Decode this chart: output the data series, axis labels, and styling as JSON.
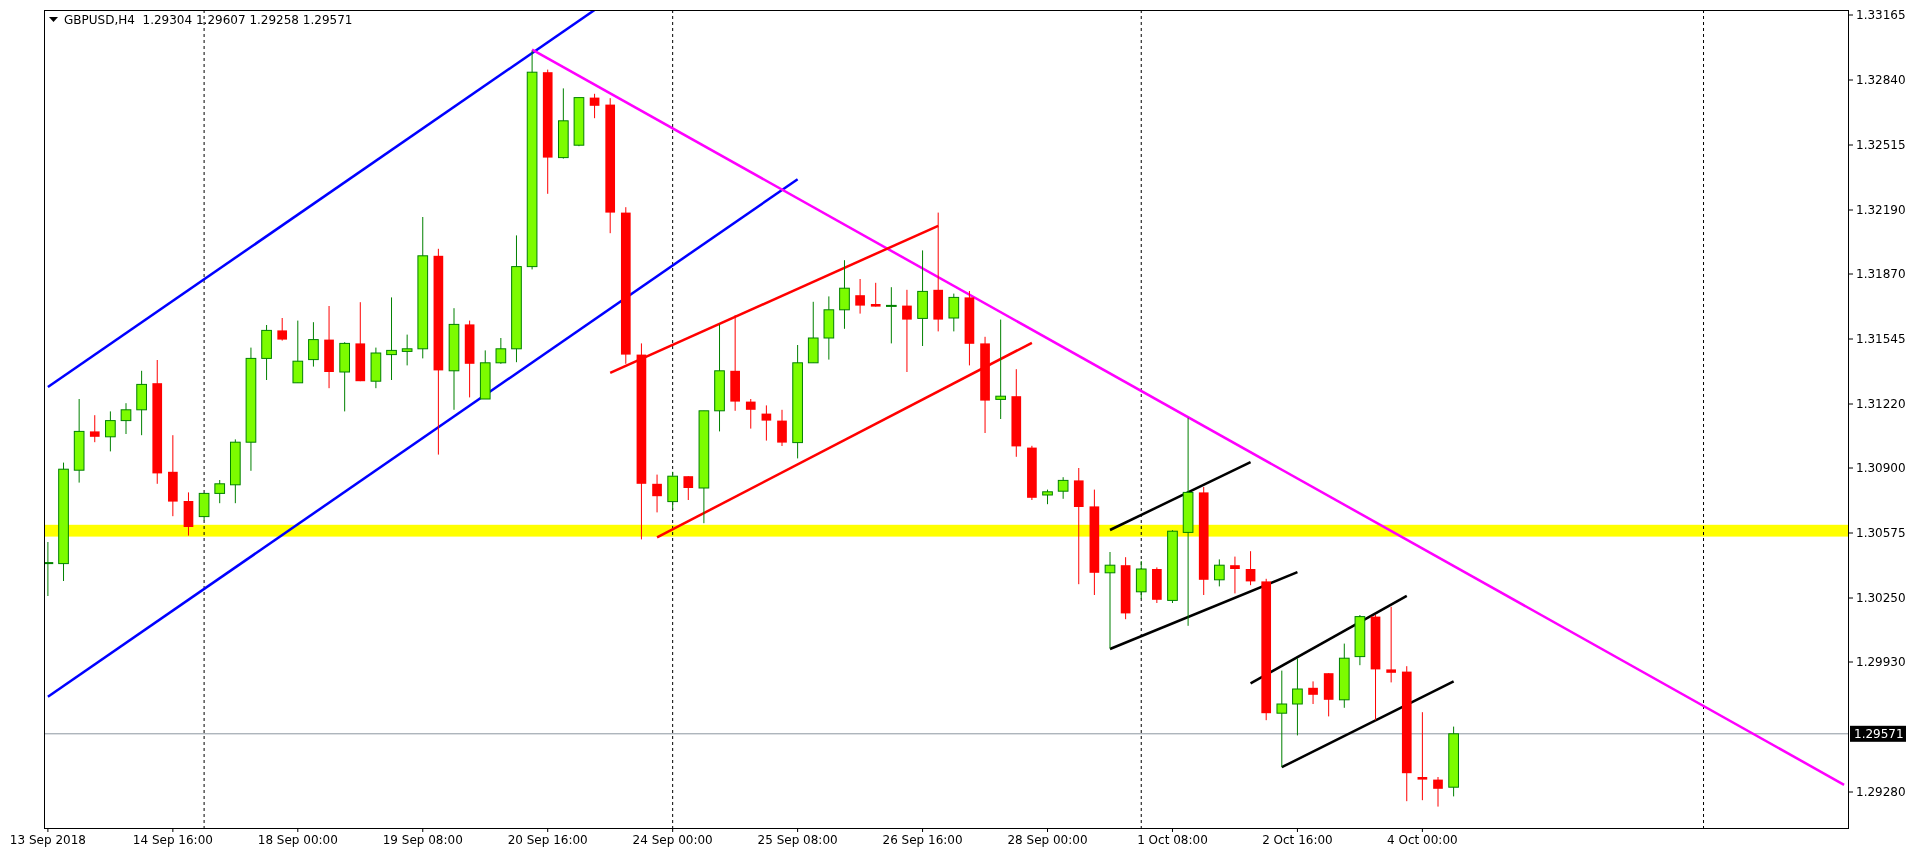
{
  "chart_data": {
    "type": "candlestick",
    "title": "GBPUSD,H4  1.29304 1.29607 1.29258 1.29571",
    "categories": [
      "13 Sep 2018",
      null,
      null,
      null,
      null,
      null,
      null,
      null,
      "14 Sep 16:00",
      null,
      null,
      null,
      null,
      null,
      null,
      null,
      "18 Sep 00:00",
      null,
      null,
      null,
      null,
      null,
      null,
      null,
      "19 Sep 08:00",
      null,
      null,
      null,
      null,
      null,
      null,
      null,
      "20 Sep 16:00",
      null,
      null,
      null,
      null,
      null,
      null,
      null,
      "24 Sep 00:00",
      null,
      null,
      null,
      null,
      null,
      null,
      null,
      "25 Sep 08:00",
      null,
      null,
      null,
      null,
      null,
      null,
      null,
      "26 Sep 16:00",
      null,
      null,
      null,
      null,
      null,
      null,
      null,
      "28 Sep 00:00",
      null,
      null,
      null,
      null,
      null,
      null,
      null,
      "1 Oct 08:00",
      null,
      null,
      null,
      null,
      null,
      null,
      null,
      "2 Oct 16:00",
      null,
      null,
      null,
      null,
      null,
      null,
      null,
      "4 Oct 00:00",
      null,
      null,
      null,
      null,
      null,
      null,
      null,
      null,
      null,
      null,
      null,
      null,
      null,
      null,
      null,
      null,
      null,
      null,
      null,
      null,
      null,
      null,
      null,
      null,
      null,
      null,
      null
    ],
    "ohlc": [
      [
        1.30422,
        1.3053,
        1.3026,
        1.30427
      ],
      [
        1.30422,
        1.30927,
        1.30335,
        1.30894
      ],
      [
        1.30889,
        1.31245,
        1.30827,
        1.31083
      ],
      [
        1.31083,
        1.31164,
        1.31029,
        1.31056
      ],
      [
        1.31056,
        1.31183,
        1.30983,
        1.31137
      ],
      [
        1.31137,
        1.31224,
        1.3107,
        1.31191
      ],
      [
        1.31191,
        1.31386,
        1.31064,
        1.31318
      ],
      [
        1.31324,
        1.3144,
        1.30821,
        1.30873
      ],
      [
        1.30881,
        1.31064,
        1.30659,
        1.30732
      ],
      [
        1.30735,
        1.30778,
        1.30562,
        1.30605
      ],
      [
        1.30657,
        1.30773,
        1.30638,
        1.30773
      ],
      [
        1.30773,
        1.3084,
        1.30724,
        1.30821
      ],
      [
        1.30816,
        1.31043,
        1.30724,
        1.31029
      ],
      [
        1.31029,
        1.31502,
        1.30886,
        1.31448
      ],
      [
        1.31448,
        1.31615,
        1.3134,
        1.31588
      ],
      [
        1.31588,
        1.3165,
        1.31537,
        1.31542
      ],
      [
        1.31326,
        1.31637,
        1.31326,
        1.31434
      ],
      [
        1.31442,
        1.31629,
        1.31407,
        1.31542
      ],
      [
        1.31542,
        1.3171,
        1.31299,
        1.3138
      ],
      [
        1.3138,
        1.31529,
        1.31183,
        1.31523
      ],
      [
        1.31523,
        1.31729,
        1.31334,
        1.31334
      ],
      [
        1.31334,
        1.31502,
        1.31299,
        1.31475
      ],
      [
        1.31467,
        1.31753,
        1.3134,
        1.31488
      ],
      [
        1.31483,
        1.31567,
        1.31413,
        1.31496
      ],
      [
        1.31496,
        1.32155,
        1.31448,
        1.31961
      ],
      [
        1.31961,
        1.31996,
        1.30967,
        1.31388
      ],
      [
        1.31386,
        1.31699,
        1.31191,
        1.31618
      ],
      [
        1.31618,
        1.31637,
        1.31253,
        1.31421
      ],
      [
        1.31245,
        1.31488,
        1.31245,
        1.31426
      ],
      [
        1.31426,
        1.3155,
        1.31421,
        1.31496
      ],
      [
        1.31496,
        1.32063,
        1.31429,
        1.31907
      ],
      [
        1.31907,
        1.32987,
        1.31893,
        1.32879
      ],
      [
        1.32879,
        1.32892,
        1.32271,
        1.32452
      ],
      [
        1.32452,
        1.32798,
        1.32447,
        1.32636
      ],
      [
        1.32514,
        1.32752,
        1.32509,
        1.32752
      ],
      [
        1.32752,
        1.32771,
        1.32649,
        1.32711
      ],
      [
        1.32717,
        1.32749,
        1.32074,
        1.32177
      ],
      [
        1.32177,
        1.32204,
        1.31421,
        1.31467
      ],
      [
        1.31467,
        1.31523,
        1.30543,
        1.30821
      ],
      [
        1.30821,
        1.30867,
        1.30678,
        1.30759
      ],
      [
        1.30732,
        1.30881,
        1.30692,
        1.30859
      ],
      [
        1.30859,
        1.30859,
        1.3074,
        1.308
      ],
      [
        1.308,
        1.31186,
        1.30624,
        1.31186
      ],
      [
        1.31186,
        1.31618,
        1.31083,
        1.31386
      ],
      [
        1.31386,
        1.31664,
        1.31186,
        1.31232
      ],
      [
        1.31232,
        1.31245,
        1.31097,
        1.31191
      ],
      [
        1.31172,
        1.31213,
        1.31037,
        1.31137
      ],
      [
        1.31137,
        1.31191,
        1.3101,
        1.31027
      ],
      [
        1.31027,
        1.31515,
        1.30948,
        1.31426
      ],
      [
        1.31426,
        1.31731,
        1.31426,
        1.3155
      ],
      [
        1.3155,
        1.31758,
        1.31442,
        1.31691
      ],
      [
        1.31691,
        1.31939,
        1.31596,
        1.31799
      ],
      [
        1.31764,
        1.31845,
        1.31672,
        1.31712
      ],
      [
        1.3172,
        1.31826,
        1.31707,
        1.31707
      ],
      [
        1.3171,
        1.31804,
        1.31523,
        1.31713
      ],
      [
        1.31712,
        1.31791,
        1.3138,
        1.31642
      ],
      [
        1.31648,
        1.31988,
        1.3151,
        1.31783
      ],
      [
        1.31791,
        1.32177,
        1.31583,
        1.31642
      ],
      [
        1.3165,
        1.31772,
        1.31583,
        1.31753
      ],
      [
        1.31753,
        1.31785,
        1.31413,
        1.31521
      ],
      [
        1.31523,
        1.31556,
        1.31075,
        1.31237
      ],
      [
        1.31243,
        1.31642,
        1.31145,
        1.31259
      ],
      [
        1.31259,
        1.31394,
        1.30956,
        1.31008
      ],
      [
        1.31002,
        1.31011,
        1.3074,
        1.30751
      ],
      [
        1.30765,
        1.30792,
        1.30719,
        1.30781
      ],
      [
        1.30784,
        1.30854,
        1.30746,
        1.30838
      ],
      [
        1.30838,
        1.309,
        1.30319,
        1.30705
      ],
      [
        1.30708,
        1.30792,
        1.30265,
        1.30376
      ],
      [
        1.30376,
        1.3048,
        1.29998,
        1.30414
      ],
      [
        1.30414,
        1.30454,
        1.30144,
        1.30173
      ],
      [
        1.30281,
        1.30435,
        1.30246,
        1.30395
      ],
      [
        1.30395,
        1.30403,
        1.30225,
        1.30241
      ],
      [
        1.30238,
        1.30589,
        1.30225,
        1.30584
      ],
      [
        1.30578,
        1.31151,
        1.30111,
        1.30778
      ],
      [
        1.30778,
        1.30805,
        1.30265,
        1.30341
      ],
      [
        1.30341,
        1.30443,
        1.30308,
        1.30414
      ],
      [
        1.30414,
        1.30457,
        1.30273,
        1.30395
      ],
      [
        1.30395,
        1.30484,
        1.30314,
        1.30333
      ],
      [
        1.30333,
        1.30346,
        1.29639,
        1.29674
      ],
      [
        1.29674,
        1.29887,
        1.29404,
        1.2972
      ],
      [
        1.2972,
        1.29949,
        1.29563,
        1.29795
      ],
      [
        1.29801,
        1.29833,
        1.2972,
        1.29766
      ],
      [
        1.29874,
        1.29874,
        1.29658,
        1.29741
      ],
      [
        1.29741,
        1.30022,
        1.29701,
        1.29949
      ],
      [
        1.29957,
        1.30165,
        1.29914,
        1.30157
      ],
      [
        1.30157,
        1.30165,
        1.29639,
        1.29893
      ],
      [
        1.29893,
        1.30206,
        1.29828,
        1.29876
      ],
      [
        1.29882,
        1.29909,
        1.29234,
        1.29374
      ],
      [
        1.29355,
        1.29679,
        1.29239,
        1.29342
      ],
      [
        1.29342,
        1.29355,
        1.29207,
        1.29296
      ],
      [
        1.29304,
        1.29607,
        1.29258,
        1.29571
      ],
      null,
      null,
      null,
      null,
      null,
      null,
      null,
      null,
      null,
      null,
      null,
      null,
      null,
      null,
      null,
      null,
      null,
      null,
      null,
      null,
      null,
      null,
      null,
      null,
      null
    ],
    "series": [
      {
        "type": "line",
        "color": "#0000ff",
        "values": [
          1.31305,
          null,
          null,
          null,
          null,
          null,
          null,
          null,
          null,
          null,
          null,
          null,
          null,
          null,
          null,
          null,
          null,
          null,
          null,
          null,
          null,
          null,
          null,
          null,
          null,
          null,
          null,
          null,
          null,
          null,
          null,
          null,
          null,
          null,
          null,
          1.3319,
          null,
          null,
          null,
          null,
          null,
          null,
          null,
          null,
          null,
          null,
          null,
          null,
          null,
          null,
          null,
          null,
          null,
          null,
          null,
          null,
          null,
          null,
          null,
          null,
          null,
          null,
          null,
          null,
          null,
          null,
          null,
          null,
          null,
          null,
          null,
          null,
          null,
          null,
          null,
          null,
          null,
          null,
          null,
          null,
          null,
          null,
          null,
          null,
          null,
          null,
          null,
          null,
          null,
          null,
          null,
          null,
          null,
          null,
          null,
          null,
          null,
          null,
          null,
          null,
          null,
          null,
          null,
          null,
          null,
          null,
          null,
          null,
          null,
          null,
          null,
          null,
          null,
          null,
          null,
          null
        ]
      },
      {
        "type": "line",
        "color": "#0000ff",
        "values": [
          1.29756,
          null,
          null,
          null,
          null,
          null,
          null,
          null,
          null,
          null,
          null,
          null,
          null,
          null,
          null,
          null,
          null,
          null,
          null,
          null,
          null,
          null,
          null,
          null,
          null,
          null,
          null,
          null,
          null,
          null,
          null,
          null,
          null,
          null,
          null,
          null,
          null,
          null,
          null,
          null,
          null,
          null,
          null,
          null,
          null,
          null,
          null,
          null,
          1.32344,
          null,
          null,
          null,
          null,
          null,
          null,
          null,
          null,
          null,
          null,
          null,
          null,
          null,
          null,
          null,
          null,
          null,
          null,
          null,
          null,
          null,
          null,
          null,
          null,
          null,
          null,
          null,
          null,
          null,
          null,
          null,
          null,
          null,
          null,
          null,
          null,
          null,
          null,
          null,
          null,
          null,
          null,
          null,
          null,
          null,
          null,
          null,
          null,
          null,
          null,
          null,
          null,
          null,
          null,
          null,
          null,
          null,
          null,
          null,
          null,
          null,
          null,
          null,
          null,
          null,
          null,
          null
        ]
      },
      {
        "type": "line",
        "color": "#ff00ff",
        "values": [
          null,
          null,
          null,
          null,
          null,
          null,
          null,
          null,
          null,
          null,
          null,
          null,
          null,
          null,
          null,
          null,
          null,
          null,
          null,
          null,
          null,
          null,
          null,
          null,
          null,
          null,
          null,
          null,
          null,
          null,
          null,
          1.32992,
          null,
          null,
          null,
          null,
          null,
          null,
          null,
          null,
          null,
          null,
          null,
          null,
          null,
          null,
          null,
          null,
          null,
          null,
          null,
          null,
          null,
          null,
          null,
          null,
          null,
          null,
          null,
          null,
          null,
          null,
          null,
          null,
          null,
          null,
          null,
          null,
          null,
          null,
          null,
          null,
          null,
          null,
          null,
          null,
          null,
          null,
          null,
          null,
          null,
          null,
          null,
          null,
          null,
          null,
          null,
          null,
          null,
          null,
          null,
          null,
          null,
          null,
          null,
          null,
          null,
          null,
          null,
          null,
          null,
          null,
          null,
          null,
          null,
          null,
          null,
          null,
          null,
          null,
          null,
          null,
          null,
          null,
          null,
          1.29316
        ]
      },
      {
        "type": "line",
        "color": "#ff0000",
        "values": [
          null,
          null,
          null,
          null,
          null,
          null,
          null,
          null,
          null,
          null,
          null,
          null,
          null,
          null,
          null,
          null,
          null,
          null,
          null,
          null,
          null,
          null,
          null,
          null,
          null,
          null,
          null,
          null,
          null,
          null,
          null,
          null,
          null,
          null,
          null,
          null,
          1.31376,
          null,
          null,
          null,
          null,
          null,
          null,
          null,
          null,
          null,
          null,
          null,
          null,
          null,
          null,
          null,
          null,
          null,
          null,
          null,
          null,
          1.32111,
          null,
          null,
          null,
          null,
          null,
          null,
          null,
          null,
          null,
          null,
          null,
          null,
          null,
          null,
          null,
          null,
          null,
          null,
          null,
          null,
          null,
          null,
          null,
          null,
          null,
          null,
          null,
          null,
          null,
          null,
          null,
          null,
          null,
          null,
          null,
          null,
          null,
          null,
          null,
          null,
          null,
          null,
          null,
          null,
          null,
          null,
          null,
          null,
          null,
          null,
          null,
          null,
          null,
          null,
          null,
          null,
          null,
          null
        ]
      },
      {
        "type": "line",
        "color": "#ff0000",
        "values": [
          null,
          null,
          null,
          null,
          null,
          null,
          null,
          null,
          null,
          null,
          null,
          null,
          null,
          null,
          null,
          null,
          null,
          null,
          null,
          null,
          null,
          null,
          null,
          null,
          null,
          null,
          null,
          null,
          null,
          null,
          null,
          null,
          null,
          null,
          null,
          null,
          null,
          null,
          null,
          1.30553,
          null,
          null,
          null,
          null,
          null,
          null,
          null,
          null,
          null,
          null,
          null,
          null,
          null,
          null,
          null,
          null,
          null,
          null,
          null,
          null,
          null,
          null,
          null,
          1.31526,
          null,
          null,
          null,
          null,
          null,
          null,
          null,
          null,
          null,
          null,
          null,
          null,
          null,
          null,
          null,
          null,
          null,
          null,
          null,
          null,
          null,
          null,
          null,
          null,
          null,
          null,
          null,
          null,
          null,
          null,
          null,
          null,
          null,
          null,
          null,
          null,
          null,
          null,
          null,
          null,
          null,
          null,
          null,
          null,
          null,
          null,
          null,
          null,
          null,
          null,
          null,
          null
        ]
      },
      {
        "type": "line",
        "color": "#000000",
        "values": [
          null,
          null,
          null,
          null,
          null,
          null,
          null,
          null,
          null,
          null,
          null,
          null,
          null,
          null,
          null,
          null,
          null,
          null,
          null,
          null,
          null,
          null,
          null,
          null,
          null,
          null,
          null,
          null,
          null,
          null,
          null,
          null,
          null,
          null,
          null,
          null,
          null,
          null,
          null,
          null,
          null,
          null,
          null,
          null,
          null,
          null,
          null,
          null,
          null,
          null,
          null,
          null,
          null,
          null,
          null,
          null,
          null,
          null,
          null,
          null,
          null,
          null,
          null,
          null,
          null,
          null,
          null,
          null,
          1.3059,
          null,
          null,
          null,
          null,
          null,
          null,
          null,
          null,
          1.30929,
          null,
          null,
          null,
          null,
          null,
          null,
          null,
          null,
          null,
          null,
          null,
          null,
          null,
          null,
          null,
          null,
          null,
          null,
          null,
          null,
          null,
          null,
          null,
          null,
          null,
          null,
          null,
          null,
          null,
          null,
          null,
          null,
          null,
          null,
          null,
          null,
          null,
          null
        ]
      },
      {
        "type": "line",
        "color": "#000000",
        "values": [
          null,
          null,
          null,
          null,
          null,
          null,
          null,
          null,
          null,
          null,
          null,
          null,
          null,
          null,
          null,
          null,
          null,
          null,
          null,
          null,
          null,
          null,
          null,
          null,
          null,
          null,
          null,
          null,
          null,
          null,
          null,
          null,
          null,
          null,
          null,
          null,
          null,
          null,
          null,
          null,
          null,
          null,
          null,
          null,
          null,
          null,
          null,
          null,
          null,
          null,
          null,
          null,
          null,
          null,
          null,
          null,
          null,
          null,
          null,
          null,
          null,
          null,
          null,
          null,
          null,
          null,
          null,
          null,
          1.29995,
          null,
          null,
          null,
          null,
          null,
          null,
          null,
          null,
          null,
          null,
          null,
          1.30379,
          null,
          null,
          null,
          null,
          null,
          null,
          null,
          null,
          null,
          null,
          null,
          null,
          null,
          null,
          null,
          null,
          null,
          null,
          null,
          null,
          null,
          null,
          null,
          null,
          null,
          null,
          null,
          null,
          null,
          null,
          null,
          null,
          null,
          null,
          null
        ]
      },
      {
        "type": "line",
        "color": "#000000",
        "values": [
          null,
          null,
          null,
          null,
          null,
          null,
          null,
          null,
          null,
          null,
          null,
          null,
          null,
          null,
          null,
          null,
          null,
          null,
          null,
          null,
          null,
          null,
          null,
          null,
          null,
          null,
          null,
          null,
          null,
          null,
          null,
          null,
          null,
          null,
          null,
          null,
          null,
          null,
          null,
          null,
          null,
          null,
          null,
          null,
          null,
          null,
          null,
          null,
          null,
          null,
          null,
          null,
          null,
          null,
          null,
          null,
          null,
          null,
          null,
          null,
          null,
          null,
          null,
          null,
          null,
          null,
          null,
          null,
          null,
          null,
          null,
          null,
          null,
          null,
          null,
          null,
          null,
          1.29823,
          null,
          null,
          null,
          null,
          null,
          null,
          null,
          null,
          null,
          1.30261,
          null,
          null,
          null,
          null,
          null,
          null,
          null,
          null,
          null,
          null,
          null,
          null,
          null,
          null,
          null,
          null,
          null,
          null,
          null,
          null,
          null,
          null,
          null,
          null,
          null,
          null,
          null,
          null
        ]
      },
      {
        "type": "line",
        "color": "#000000",
        "values": [
          null,
          null,
          null,
          null,
          null,
          null,
          null,
          null,
          null,
          null,
          null,
          null,
          null,
          null,
          null,
          null,
          null,
          null,
          null,
          null,
          null,
          null,
          null,
          null,
          null,
          null,
          null,
          null,
          null,
          null,
          null,
          null,
          null,
          null,
          null,
          null,
          null,
          null,
          null,
          null,
          null,
          null,
          null,
          null,
          null,
          null,
          null,
          null,
          null,
          null,
          null,
          null,
          null,
          null,
          null,
          null,
          null,
          null,
          null,
          null,
          null,
          null,
          null,
          null,
          null,
          null,
          null,
          null,
          null,
          null,
          null,
          null,
          null,
          null,
          null,
          null,
          null,
          null,
          null,
          1.29404,
          null,
          null,
          null,
          null,
          null,
          null,
          null,
          null,
          null,
          null,
          1.29833,
          null,
          null,
          null,
          null,
          null,
          null,
          null,
          null,
          null,
          null,
          null,
          null,
          null,
          null,
          null,
          null,
          null,
          null,
          null,
          null,
          null,
          null,
          null,
          null,
          null
        ]
      }
    ],
    "grid": "x",
    "ylim": [
      1.291,
      1.3319
    ],
    "yticks": [
      1.33165,
      {
        "value": 1.3284,
        "label": "1.32840"
      },
      1.32515,
      {
        "value": 1.3219,
        "label": "1.32190"
      },
      {
        "value": 1.3187,
        "label": "1.31870"
      },
      1.31545,
      {
        "value": 1.3122,
        "label": "1.31220"
      },
      {
        "value": 1.309,
        "label": "1.30900"
      },
      1.30575,
      {
        "value": 1.3025,
        "label": "1.30250"
      },
      {
        "value": 1.2993,
        "label": "1.29930"
      },
      {
        "value": 1.2928,
        "label": "1.29280"
      }
    ],
    "bands": [
      {
        "axis": "y",
        "from": 1.30557,
        "to": 1.30616,
        "color": "#ffff00"
      }
    ],
    "ref_lines": [
      {
        "axis": "y",
        "value": 1.29571,
        "label": "1.29571",
        "color": "#8c96a0",
        "line_style": "solid"
      }
    ]
  }
}
